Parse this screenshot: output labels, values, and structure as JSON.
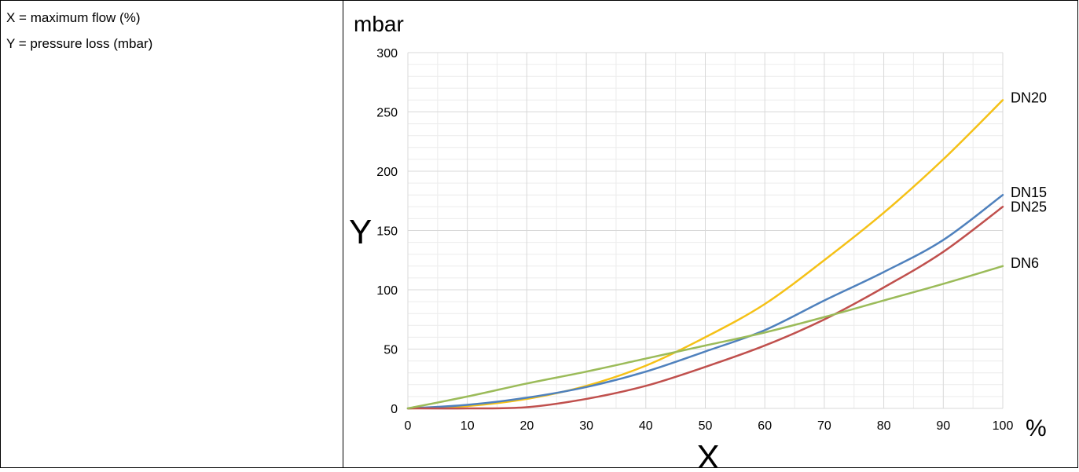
{
  "legend_notes": {
    "x_note": "X = maximum flow (%)",
    "y_note": "Y = pressure loss (mbar)"
  },
  "chart_data": {
    "type": "line",
    "title": "",
    "xlabel": "X",
    "ylabel": "Y",
    "x_unit": "%",
    "y_unit": "mbar",
    "xlim": [
      0,
      100
    ],
    "ylim": [
      0,
      300
    ],
    "x_ticks": [
      "0",
      "10",
      "20",
      "30",
      "40",
      "50",
      "60",
      "70",
      "80",
      "90",
      "100"
    ],
    "y_ticks": [
      "0",
      "50",
      "100",
      "150",
      "200",
      "250",
      "300"
    ],
    "grid": true,
    "x": [
      0,
      10,
      20,
      30,
      40,
      50,
      60,
      70,
      80,
      90,
      100
    ],
    "series": [
      {
        "name": "DN20",
        "color": "#F5C116",
        "values": [
          0,
          2,
          8,
          19,
          36,
          60,
          88,
          125,
          165,
          210,
          260
        ]
      },
      {
        "name": "DN15",
        "color": "#4F81BD",
        "values": [
          0,
          3,
          9,
          18,
          31,
          48,
          66,
          91,
          115,
          142,
          180
        ]
      },
      {
        "name": "DN25",
        "color": "#C0504D",
        "values": [
          0,
          0,
          1,
          8,
          19,
          35,
          53,
          75,
          102,
          132,
          170
        ]
      },
      {
        "name": "DN6",
        "color": "#9BBB59",
        "values": [
          0,
          10,
          21,
          31,
          42,
          53,
          64,
          77,
          91,
          105,
          120
        ]
      }
    ]
  }
}
